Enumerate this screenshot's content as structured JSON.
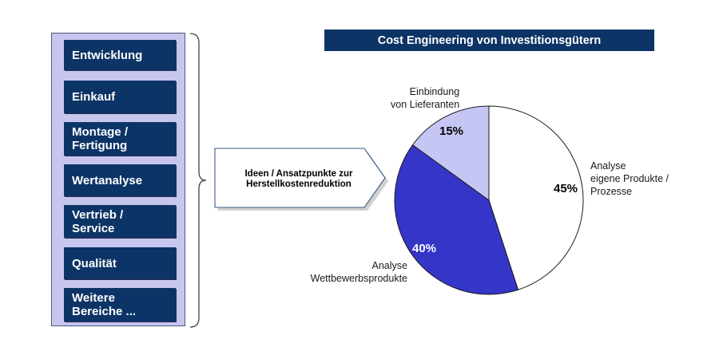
{
  "title": "Cost Engineering von Investitionsgütern",
  "departments": [
    "Entwicklung",
    "Einkauf",
    "Montage /\nFertigung",
    "Wertanalyse",
    "Vertrieb /\nService",
    "Qualität",
    "Weitere\nBereiche ..."
  ],
  "arrow_label": "Ideen / Ansatzpunkte zur\nHerstellkostenreduktion",
  "colors": {
    "navy": "#0d3466",
    "panel": "#c6c6ef",
    "slice_own": "#ffffff",
    "slice_competitor": "#3535c8",
    "slice_supplier": "#c6c6f5"
  },
  "chart_data": {
    "type": "pie",
    "title": "Cost Engineering von Investitionsgütern",
    "slices": [
      {
        "label": "Analyse\neigene Produkte /\nProzesse",
        "value": 45,
        "value_label": "45%",
        "color": "#ffffff"
      },
      {
        "label": "Analyse\nWettbewerbsprodukte",
        "value": 40,
        "value_label": "40%",
        "color": "#3535c8"
      },
      {
        "label": "Einbindung\nvon Lieferanten",
        "value": 15,
        "value_label": "15%",
        "color": "#c6c6f5"
      }
    ],
    "start_angle": "top",
    "direction": "clockwise"
  }
}
